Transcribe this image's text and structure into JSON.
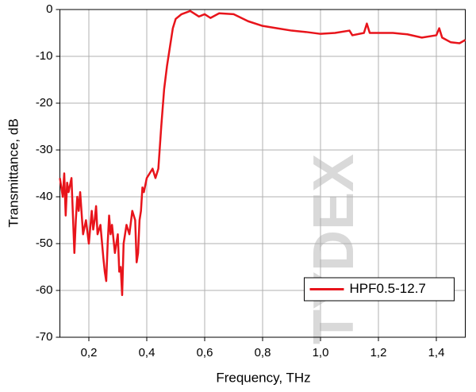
{
  "chart_data": {
    "type": "line",
    "x_label": "Frequency, THz",
    "y_label": "Transmittance, dB",
    "watermark": "TYDEX",
    "xlim": [
      0.1,
      1.5
    ],
    "ylim": [
      -70,
      0
    ],
    "xticks": [
      {
        "value": 0.2,
        "label": "0,2"
      },
      {
        "value": 0.4,
        "label": "0,4"
      },
      {
        "value": 0.6,
        "label": "0,6"
      },
      {
        "value": 0.8,
        "label": "0,8"
      },
      {
        "value": 1.0,
        "label": "1,0"
      },
      {
        "value": 1.2,
        "label": "1,2"
      },
      {
        "value": 1.4,
        "label": "1,4"
      }
    ],
    "yticks": [
      -70,
      -60,
      -50,
      -40,
      -30,
      -20,
      -10,
      0
    ],
    "grid": true,
    "legend": "lower right",
    "x": [
      0.1,
      0.11,
      0.115,
      0.12,
      0.125,
      0.13,
      0.14,
      0.145,
      0.15,
      0.155,
      0.16,
      0.165,
      0.17,
      0.18,
      0.19,
      0.2,
      0.21,
      0.215,
      0.22,
      0.225,
      0.23,
      0.24,
      0.25,
      0.255,
      0.26,
      0.265,
      0.27,
      0.275,
      0.28,
      0.29,
      0.3,
      0.305,
      0.31,
      0.315,
      0.32,
      0.33,
      0.34,
      0.35,
      0.36,
      0.365,
      0.37,
      0.375,
      0.38,
      0.385,
      0.39,
      0.4,
      0.41,
      0.42,
      0.43,
      0.44,
      0.45,
      0.46,
      0.47,
      0.48,
      0.49,
      0.5,
      0.52,
      0.55,
      0.58,
      0.6,
      0.62,
      0.65,
      0.7,
      0.75,
      0.8,
      0.85,
      0.9,
      0.95,
      1.0,
      1.05,
      1.1,
      1.11,
      1.15,
      1.16,
      1.17,
      1.2,
      1.25,
      1.3,
      1.35,
      1.4,
      1.41,
      1.42,
      1.45,
      1.48,
      1.5
    ],
    "series": [
      {
        "name": "HPF0.5-12.7",
        "color": "#e8141b",
        "values": [
          -36,
          -40,
          -35,
          -44,
          -37,
          -39,
          -36,
          -44,
          -52,
          -45,
          -40,
          -43,
          -39,
          -48,
          -45,
          -50,
          -43,
          -47,
          -45,
          -42,
          -48,
          -46,
          -53,
          -56,
          -58,
          -50,
          -44,
          -48,
          -46,
          -52,
          -48,
          -56,
          -55,
          -61,
          -50,
          -46,
          -48,
          -43,
          -45,
          -54,
          -52,
          -45,
          -43,
          -38,
          -39,
          -36,
          -35,
          -34,
          -36,
          -34,
          -25,
          -17,
          -12,
          -8,
          -4,
          -2,
          -1,
          -0.3,
          -1.5,
          -1,
          -1.8,
          -0.8,
          -1,
          -2.5,
          -3.5,
          -4,
          -4.5,
          -4.8,
          -5.2,
          -5,
          -4.5,
          -5.5,
          -5,
          -3,
          -5,
          -5,
          -5,
          -5.3,
          -6,
          -5.5,
          -4,
          -6,
          -7,
          -7.2,
          -6.5
        ]
      }
    ]
  }
}
